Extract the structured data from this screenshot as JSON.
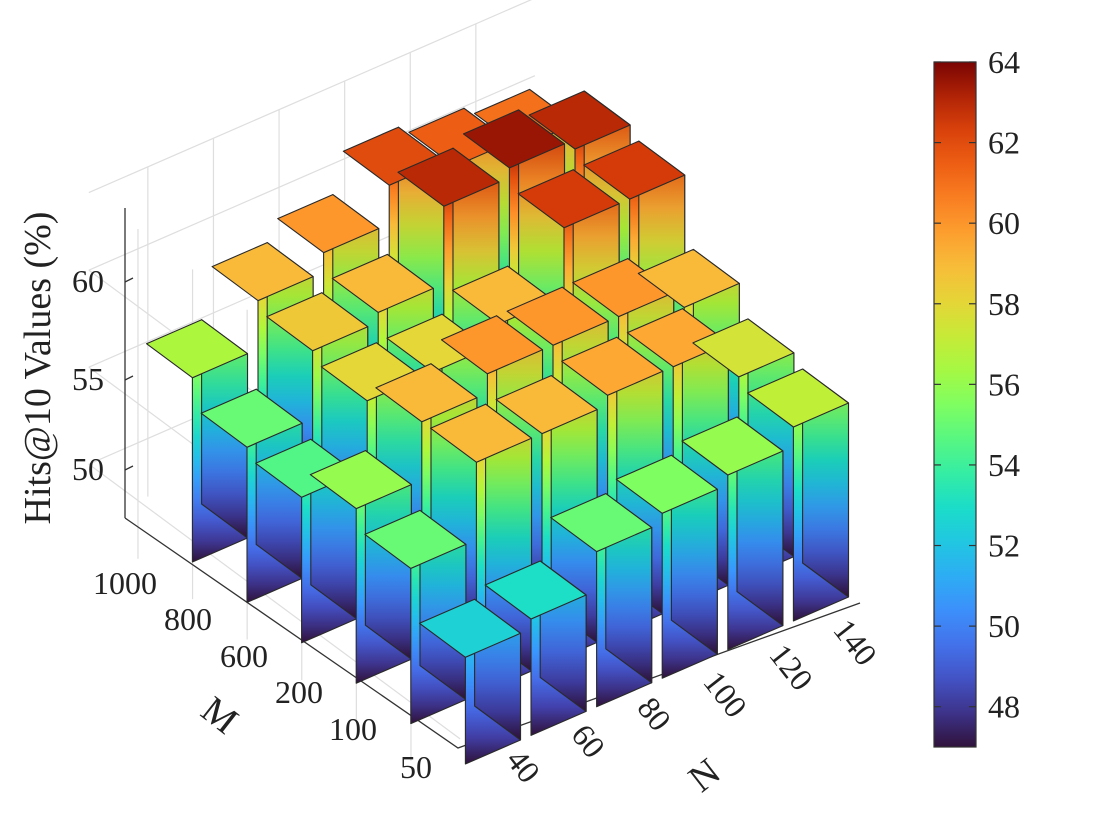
{
  "chart_data": {
    "type": "bar3d",
    "title": "",
    "xlabel": "N",
    "ylabel": "M",
    "zlabel": "Hits@10 Values (%)",
    "x": [
      "40",
      "60",
      "80",
      "100",
      "120",
      "140"
    ],
    "y": [
      "50",
      "100",
      "200",
      "600",
      "800",
      "1000"
    ],
    "values": [
      [
        52.5,
        53.0,
        55.0,
        55.5,
        56.0,
        57.0
      ],
      [
        55.0,
        59.0,
        59.0,
        59.5,
        59.5,
        57.5
      ],
      [
        56.0,
        59.0,
        60.0,
        60.0,
        60.0,
        59.0
      ],
      [
        54.5,
        58.0,
        58.0,
        59.0,
        62.5,
        62.5
      ],
      [
        55.0,
        58.5,
        59.0,
        63.0,
        63.5,
        63.0
      ],
      [
        56.5,
        59.0,
        60.0,
        62.0,
        61.5,
        61.0
      ]
    ],
    "zlim": [
      47,
      64
    ],
    "zticks": [
      "50",
      "55",
      "60"
    ],
    "colorbar": {
      "min": 47,
      "max": 64,
      "ticks": [
        "48",
        "50",
        "52",
        "54",
        "56",
        "58",
        "60",
        "62",
        "64"
      ],
      "colormap": "turbo"
    },
    "grid": true
  }
}
